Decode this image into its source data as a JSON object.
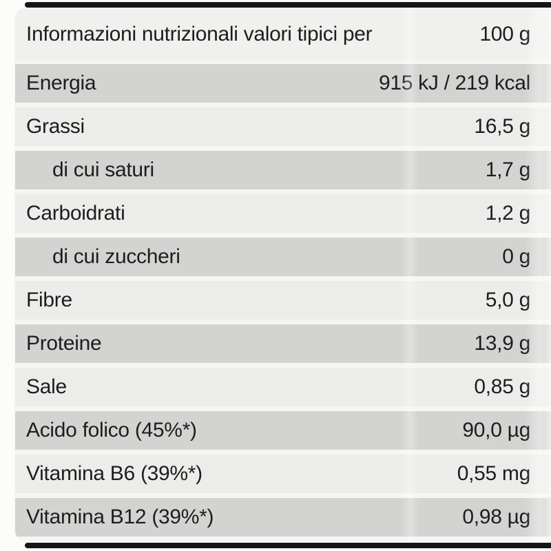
{
  "label": {
    "header": {
      "title": "Informazioni nutrizionali valori tipici per",
      "serving": "100 g"
    },
    "rows": [
      {
        "name": "Energia",
        "value": "915 kJ / 219 kcal",
        "indent": false,
        "shade": "gray"
      },
      {
        "name": "Grassi",
        "value": "16,5 g",
        "indent": false,
        "shade": "light"
      },
      {
        "name": "di cui saturi",
        "value": "1,7 g",
        "indent": true,
        "shade": "gray"
      },
      {
        "name": "Carboidrati",
        "value": "1,2 g",
        "indent": false,
        "shade": "light"
      },
      {
        "name": "di cui zuccheri",
        "value": "0 g",
        "indent": true,
        "shade": "gray"
      },
      {
        "name": "Fibre",
        "value": "5,0 g",
        "indent": false,
        "shade": "light"
      },
      {
        "name": "Proteine",
        "value": "13,9 g",
        "indent": false,
        "shade": "gray"
      },
      {
        "name": "Sale",
        "value": "0,85 g",
        "indent": false,
        "shade": "light"
      },
      {
        "name": "Acido folico (45%*)",
        "value": "90,0 µg",
        "indent": false,
        "shade": "gray"
      },
      {
        "name": "Vitamina B6 (39%*)",
        "value": "0,55 mg",
        "indent": false,
        "shade": "light"
      },
      {
        "name": "Vitamina B12 (39%*)",
        "value": "0,98 µg",
        "indent": false,
        "shade": "gray"
      }
    ],
    "colors": {
      "row_gray": "#d3d3d1",
      "row_light": "#ececea",
      "header_bg": "#f0f0ee",
      "rule_black": "#161616",
      "text": "#1d1d1d",
      "page_bg": "#fcfcfb"
    }
  }
}
